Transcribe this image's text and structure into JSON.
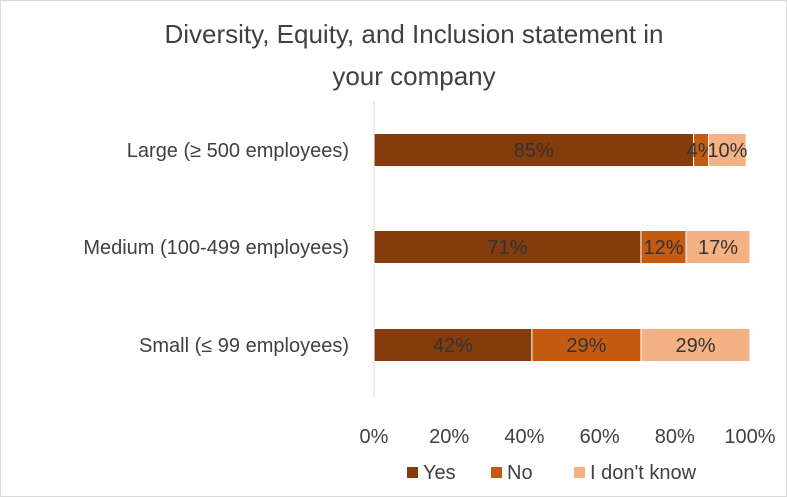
{
  "chart_data": {
    "type": "bar",
    "orientation": "horizontal",
    "stacked": "100%",
    "title": "Diversity, Equity, and Inclusion statement in your company",
    "title_lines": [
      "Diversity, Equity, and Inclusion statement in",
      "your company"
    ],
    "categories": [
      "Large (≥ 500 employees)",
      "Medium (100-499 employees)",
      "Small (≤ 99 employees)"
    ],
    "series": [
      {
        "name": "Yes",
        "color": "#843C0C",
        "values": [
          85,
          71,
          42
        ],
        "labels": [
          "85%",
          "71%",
          "42%"
        ]
      },
      {
        "name": "No",
        "color": "#C55A11",
        "values": [
          4,
          12,
          29
        ],
        "labels": [
          "4%",
          "12%",
          "29%"
        ]
      },
      {
        "name": "I don't know",
        "color": "#F4B183",
        "values": [
          10,
          17,
          29
        ],
        "labels": [
          "10%",
          "17%",
          "29%"
        ]
      }
    ],
    "x_ticks": [
      "0%",
      "20%",
      "40%",
      "60%",
      "80%",
      "100%"
    ],
    "xlim": [
      0,
      100
    ],
    "grid": false,
    "legend_position": "bottom"
  }
}
